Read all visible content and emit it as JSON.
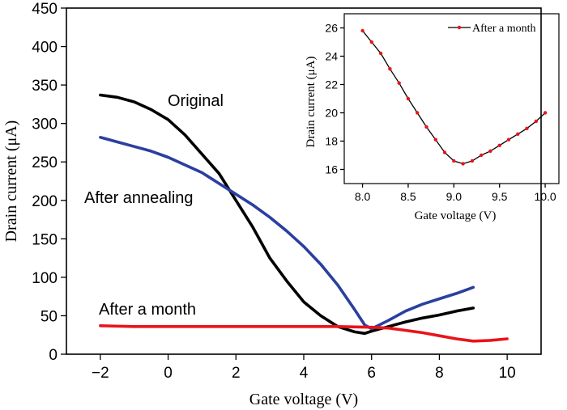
{
  "chart_data": [
    {
      "type": "line",
      "xlabel": "Gate voltage (V)",
      "ylabel": "Drain current (μA)",
      "xlim": [
        -3,
        11
      ],
      "ylim": [
        0,
        450
      ],
      "xticks": [
        -2,
        0,
        2,
        4,
        6,
        8,
        10
      ],
      "xtick_labels": [
        "−2",
        "0",
        "2",
        "4",
        "6",
        "8",
        "10"
      ],
      "yticks": [
        0,
        50,
        100,
        150,
        200,
        250,
        300,
        350,
        400,
        450
      ],
      "ytick_labels": [
        "0",
        "50",
        "100",
        "150",
        "200",
        "250",
        "300",
        "350",
        "400",
        "450"
      ],
      "grid": false,
      "series": [
        {
          "name": "Original",
          "color": "#000000",
          "x": [
            -2,
            -1.5,
            -1,
            -0.5,
            0,
            0.5,
            1,
            1.5,
            2,
            2.5,
            3,
            3.5,
            4,
            4.5,
            5,
            5.5,
            5.8,
            6,
            6.5,
            7,
            7.5,
            8,
            8.5,
            9
          ],
          "y": [
            337,
            334,
            328,
            318,
            305,
            285,
            260,
            235,
            200,
            165,
            125,
            95,
            68,
            50,
            36,
            29,
            27,
            30,
            36,
            42,
            47,
            51,
            56,
            60
          ]
        },
        {
          "name": "After annealing",
          "color": "#2b3fa0",
          "x": [
            -2,
            -1.5,
            -1,
            -0.5,
            0,
            0.5,
            1,
            1.5,
            2,
            2.5,
            3,
            3.5,
            4,
            4.5,
            5,
            5.5,
            5.8,
            6,
            6.5,
            7,
            7.5,
            8,
            8.5,
            9
          ],
          "y": [
            282,
            276,
            270,
            264,
            256,
            246,
            236,
            222,
            208,
            194,
            178,
            160,
            140,
            117,
            90,
            58,
            38,
            33,
            44,
            56,
            65,
            72,
            79,
            87
          ]
        },
        {
          "name": "After a month",
          "color": "#e8141b",
          "x": [
            -2,
            -1,
            0,
            1,
            2,
            3,
            4,
            5,
            6,
            6.5,
            7,
            7.5,
            8,
            8.5,
            9,
            9.5,
            10
          ],
          "y": [
            37,
            36,
            36,
            36,
            36,
            36,
            36,
            36,
            35,
            34,
            31,
            28,
            24,
            20,
            17,
            18,
            20
          ]
        }
      ],
      "annotations": [
        "Original",
        "After annealing",
        "After a month"
      ]
    },
    {
      "type": "line",
      "xlabel": "Gate voltage (V)",
      "ylabel": "Drain current (μA)",
      "xlim": [
        7.8,
        10.15
      ],
      "ylim": [
        15,
        27
      ],
      "xticks": [
        8.0,
        8.5,
        9.0,
        9.5,
        10.0
      ],
      "xtick_labels": [
        "8.0",
        "8.5",
        "9.0",
        "9.5",
        "10.0"
      ],
      "yticks": [
        16,
        18,
        20,
        22,
        24,
        26
      ],
      "ytick_labels": [
        "16",
        "18",
        "20",
        "22",
        "24",
        "26"
      ],
      "legend": "top-right",
      "series": [
        {
          "name": "After a month",
          "line_color": "#000000",
          "marker_color": "#e8141b",
          "x": [
            8.0,
            8.1,
            8.2,
            8.3,
            8.4,
            8.5,
            8.6,
            8.7,
            8.8,
            8.9,
            9.0,
            9.1,
            9.2,
            9.3,
            9.4,
            9.5,
            9.6,
            9.7,
            9.8,
            9.9,
            10.0
          ],
          "y": [
            25.8,
            25.0,
            24.2,
            23.1,
            22.1,
            21.0,
            20.0,
            19.0,
            18.1,
            17.2,
            16.6,
            16.4,
            16.6,
            17.0,
            17.3,
            17.7,
            18.1,
            18.5,
            18.9,
            19.4,
            20.0
          ]
        }
      ]
    }
  ]
}
